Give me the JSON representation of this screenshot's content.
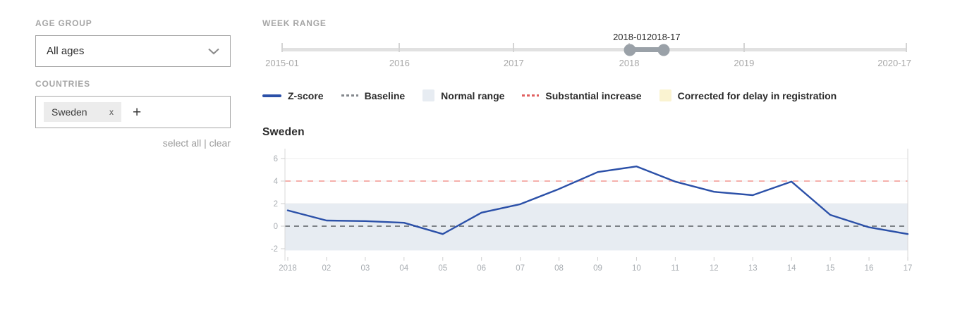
{
  "sidebar": {
    "age_group": {
      "label": "AGE GROUP",
      "selected": "All ages"
    },
    "countries": {
      "label": "COUNTRIES",
      "chips": [
        {
          "name": "Sweden",
          "remove_label": "x"
        }
      ],
      "add_label": "+",
      "select_all_label": "select all",
      "separator": "|",
      "clear_label": "clear"
    }
  },
  "week_range": {
    "label": "WEEK RANGE",
    "handles": [
      {
        "label": "2018-01",
        "pos": 55.7
      },
      {
        "label": "2018-17",
        "pos": 61.1
      }
    ],
    "axis": [
      {
        "label": "2015-01",
        "pos": 0,
        "align": "center"
      },
      {
        "label": "2016",
        "pos": 18.8,
        "align": "center"
      },
      {
        "label": "2017",
        "pos": 37.1,
        "align": "center"
      },
      {
        "label": "2018",
        "pos": 55.6,
        "align": "center"
      },
      {
        "label": "2019",
        "pos": 74.0,
        "align": "center"
      },
      {
        "label": "2020-17",
        "pos": 100,
        "align": "right"
      }
    ]
  },
  "legend": [
    {
      "label": "Z-score",
      "swatch": "line",
      "color": "#2b50a8"
    },
    {
      "label": "Baseline",
      "swatch": "dashed",
      "color": "#83878c"
    },
    {
      "label": "Normal range",
      "swatch": "box",
      "color": "#e7ecf2"
    },
    {
      "label": "Substantial increase",
      "swatch": "dashed",
      "color": "#e06060"
    },
    {
      "label": "Corrected for delay in registration",
      "swatch": "box",
      "color": "#faf3d1"
    }
  ],
  "chart_data": {
    "type": "line",
    "title": "Sweden",
    "x_labels": [
      "2018",
      "02",
      "03",
      "04",
      "05",
      "06",
      "07",
      "08",
      "09",
      "10",
      "11",
      "12",
      "13",
      "14",
      "15",
      "16",
      "17"
    ],
    "series": [
      {
        "name": "Z-score",
        "color": "#2b50a8",
        "values": [
          1.4,
          0.5,
          0.45,
          0.3,
          -0.7,
          1.2,
          1.95,
          3.3,
          4.8,
          5.3,
          3.95,
          3.05,
          2.75,
          3.95,
          1.0,
          -0.1,
          -0.7
        ]
      }
    ],
    "baseline": {
      "value": 0,
      "color": "#7d8287"
    },
    "substantial_increase": {
      "value": 4,
      "color": "#f5b0ac"
    },
    "normal_range": {
      "from": -2.15,
      "to": 2.0,
      "color": "#e7ecf2"
    },
    "yticks": [
      -2,
      0,
      2,
      4,
      6
    ],
    "ylim": [
      -2.75,
      6.75
    ],
    "axis_color": "#a8adb2",
    "tick_color": "#cfcfcf",
    "axis_line_color": "#d9d9d9",
    "grid_color": "#ececec",
    "legend_position": "top"
  }
}
